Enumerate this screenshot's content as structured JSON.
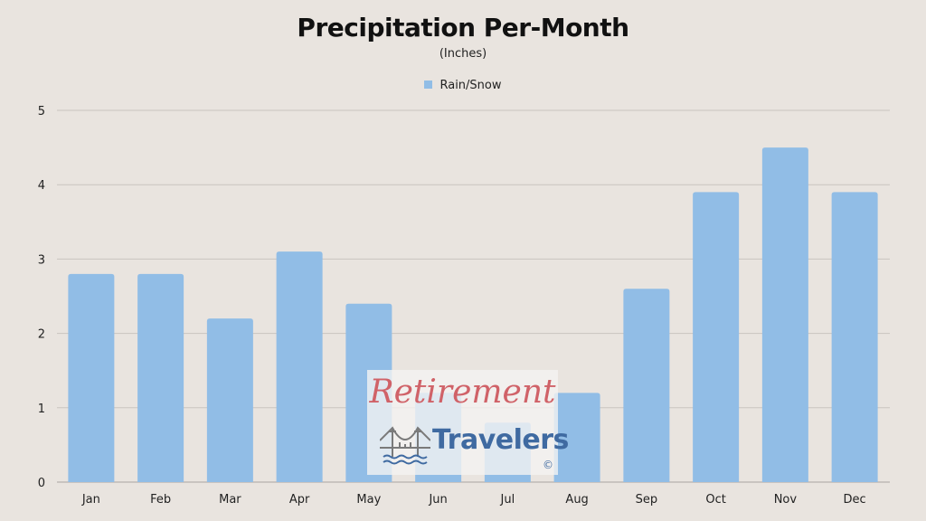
{
  "chart_data": {
    "type": "bar",
    "title": "Precipitation Per-Month",
    "subtitle": "(Inches)",
    "categories": [
      "Jan",
      "Feb",
      "Mar",
      "Apr",
      "May",
      "Jun",
      "Jul",
      "Aug",
      "Sep",
      "Oct",
      "Nov",
      "Dec"
    ],
    "series": [
      {
        "name": "Rain/Snow",
        "values": [
          2.8,
          2.8,
          2.2,
          3.1,
          2.4,
          1.2,
          0.8,
          1.2,
          2.6,
          3.9,
          4.5,
          3.9
        ],
        "color": "#91bde6"
      }
    ],
    "ylim": [
      0,
      5
    ],
    "yticks": [
      0,
      1,
      2,
      3,
      4,
      5
    ],
    "grid": true,
    "legend": "top-center"
  },
  "watermark": {
    "line1": "Retirement",
    "line2": "Travelers",
    "copyright": "©"
  }
}
